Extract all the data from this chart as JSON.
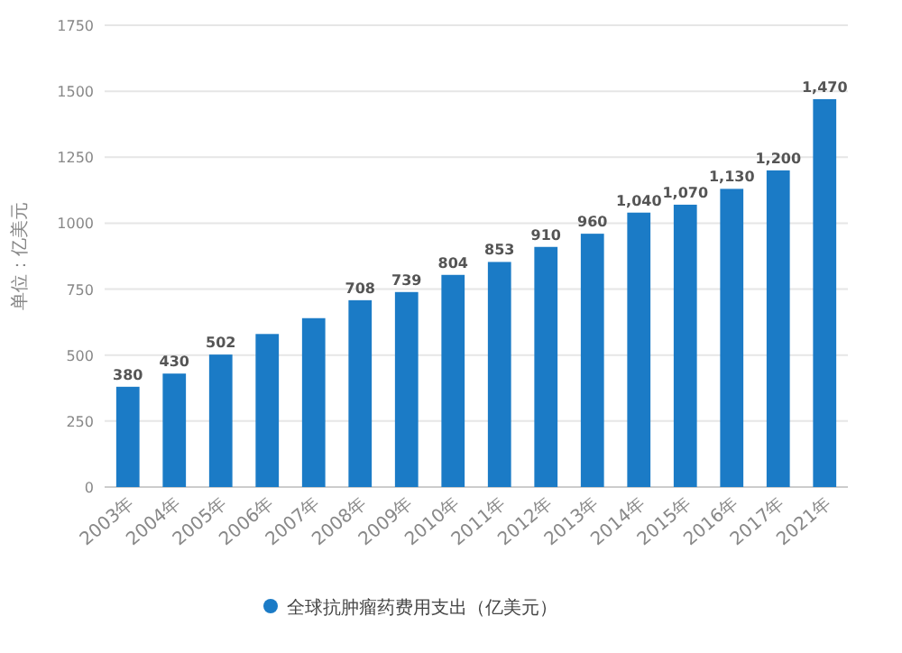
{
  "chart_data": {
    "type": "bar",
    "ylabel": "单位：亿美元",
    "categories": [
      "2003年",
      "2004年",
      "2005年",
      "2006年",
      "2007年",
      "2008年",
      "2009年",
      "2010年",
      "2011年",
      "2012年",
      "2013年",
      "2014年",
      "2015年",
      "2016年",
      "2017年",
      "2021年"
    ],
    "series": [
      {
        "name": "全球抗肿瘤药费用支出（亿美元）",
        "color": "#1b7bc6",
        "values": [
          380,
          430,
          502,
          580,
          640,
          708,
          739,
          804,
          853,
          910,
          960,
          1040,
          1070,
          1130,
          1200,
          1470
        ],
        "value_labels": [
          "380",
          "430",
          "502",
          null,
          null,
          "708",
          "739",
          "804",
          "853",
          "910",
          "960",
          "1,040",
          "1,070",
          "1,130",
          "1,200",
          "1,470"
        ]
      }
    ],
    "ylim": [
      0,
      1750
    ],
    "yticks": [
      0,
      250,
      500,
      750,
      1000,
      1250,
      1500,
      1750
    ],
    "grid": "y",
    "legend": "bottom"
  }
}
